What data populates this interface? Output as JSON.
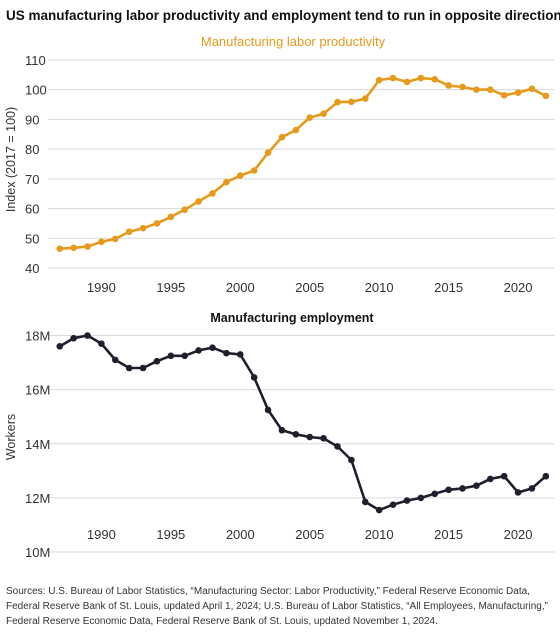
{
  "title": "US manufacturing labor productivity and employment tend to run in opposite directions",
  "sources": "Sources: U.S. Bureau of Labor Statistics, “Manufacturing Sector: Labor Productivity,” Federal Reserve Economic Data, Federal Reserve Bank of St. Louis, updated April 1, 2024; U.S. Bureau of Labor Statistics, “All Employees, Manufacturing,” Federal Reserve Economic Data, Federal Reserve Bank of St. Louis, updated November 1, 2024.",
  "chart_data": [
    {
      "type": "line",
      "title": "Manufacturing labor productivity",
      "ylabel": "Index (2017 = 100)",
      "xlabel": "",
      "color": "#e69a1c",
      "x": [
        1987,
        1988,
        1989,
        1990,
        1991,
        1992,
        1993,
        1994,
        1995,
        1996,
        1997,
        1998,
        1999,
        2000,
        2001,
        2002,
        2003,
        2004,
        2005,
        2006,
        2007,
        2008,
        2009,
        2010,
        2011,
        2012,
        2013,
        2014,
        2015,
        2016,
        2017,
        2018,
        2019,
        2020,
        2021,
        2022
      ],
      "values": [
        46.5,
        46.8,
        47.2,
        48.8,
        49.8,
        52.2,
        53.4,
        55.0,
        57.2,
        59.6,
        62.4,
        65.1,
        68.9,
        71.1,
        72.8,
        78.8,
        84.0,
        86.4,
        90.6,
        91.9,
        95.8,
        95.9,
        97.0,
        103.2,
        103.9,
        102.6,
        103.9,
        103.5,
        101.4,
        100.9,
        100.0,
        100.0,
        98.1,
        99.0,
        100.3,
        97.9
      ],
      "xticks": [
        "1990",
        "1995",
        "2000",
        "2005",
        "2010",
        "2015",
        "2020"
      ],
      "yticks": [
        "40",
        "50",
        "60",
        "70",
        "80",
        "90",
        "100",
        "110"
      ],
      "xlim": [
        1986.3,
        2022.3
      ],
      "ylim": [
        40,
        113
      ],
      "grid": true
    },
    {
      "type": "line",
      "title": "Manufacturing employment",
      "ylabel": "Workers",
      "xlabel": "",
      "color": "#1f1f2e",
      "x": [
        1987,
        1988,
        1989,
        1990,
        1991,
        1992,
        1993,
        1994,
        1995,
        1996,
        1997,
        1998,
        1999,
        2000,
        2001,
        2002,
        2003,
        2004,
        2005,
        2006,
        2007,
        2008,
        2009,
        2010,
        2011,
        2012,
        2013,
        2014,
        2015,
        2016,
        2017,
        2018,
        2019,
        2020,
        2021,
        2022
      ],
      "values": [
        17.6,
        17.9,
        18.0,
        17.7,
        17.1,
        16.8,
        16.8,
        17.05,
        17.25,
        17.25,
        17.45,
        17.55,
        17.35,
        17.3,
        16.45,
        15.25,
        14.5,
        14.35,
        14.25,
        14.2,
        13.9,
        13.4,
        11.85,
        11.55,
        11.75,
        11.9,
        12.0,
        12.15,
        12.3,
        12.35,
        12.45,
        12.7,
        12.8,
        12.2,
        12.35,
        12.8
      ],
      "units": "millions of workers",
      "xticks": [
        "1990",
        "1995",
        "2000",
        "2005",
        "2010",
        "2015",
        "2020"
      ],
      "yticks": [
        "10M",
        "12M",
        "14M",
        "16M",
        "18M"
      ],
      "xlim": [
        1986.3,
        2022.3
      ],
      "ylim": [
        10,
        18.5
      ],
      "grid": true
    }
  ]
}
